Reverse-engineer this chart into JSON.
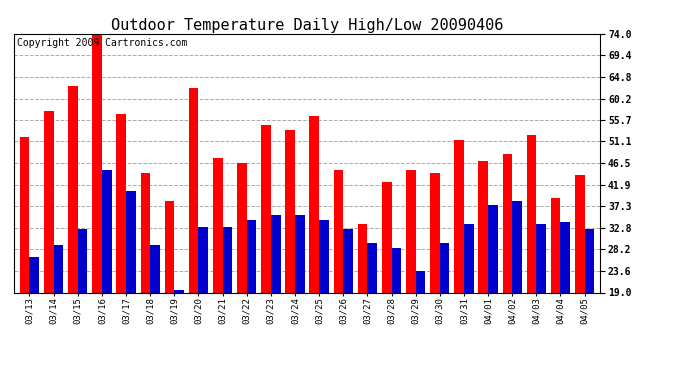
{
  "title": "Outdoor Temperature Daily High/Low 20090406",
  "copyright": "Copyright 2009 Cartronics.com",
  "dates": [
    "03/13",
    "03/14",
    "03/15",
    "03/16",
    "03/17",
    "03/18",
    "03/19",
    "03/20",
    "03/21",
    "03/22",
    "03/23",
    "03/24",
    "03/25",
    "03/26",
    "03/27",
    "03/28",
    "03/29",
    "03/30",
    "03/31",
    "04/01",
    "04/02",
    "04/03",
    "04/04",
    "04/05"
  ],
  "highs": [
    52.0,
    57.5,
    63.0,
    74.5,
    57.0,
    44.5,
    38.5,
    62.5,
    47.5,
    46.5,
    54.5,
    53.5,
    56.5,
    45.0,
    33.5,
    42.5,
    45.0,
    44.5,
    51.5,
    47.0,
    48.5,
    52.5,
    39.0,
    44.0
  ],
  "lows": [
    26.5,
    29.0,
    32.5,
    45.0,
    40.5,
    29.0,
    19.5,
    33.0,
    33.0,
    34.5,
    35.5,
    35.5,
    34.5,
    32.5,
    29.5,
    28.5,
    23.5,
    29.5,
    33.5,
    37.5,
    38.5,
    33.5,
    34.0,
    32.5
  ],
  "high_color": "#ff0000",
  "low_color": "#0000cc",
  "bg_color": "#ffffff",
  "grid_color": "#aaaaaa",
  "yticks": [
    19.0,
    23.6,
    28.2,
    32.8,
    37.3,
    41.9,
    46.5,
    51.1,
    55.7,
    60.2,
    64.8,
    69.4,
    74.0
  ],
  "ymin": 19.0,
  "ymax": 74.0,
  "title_fontsize": 11,
  "copyright_fontsize": 7
}
